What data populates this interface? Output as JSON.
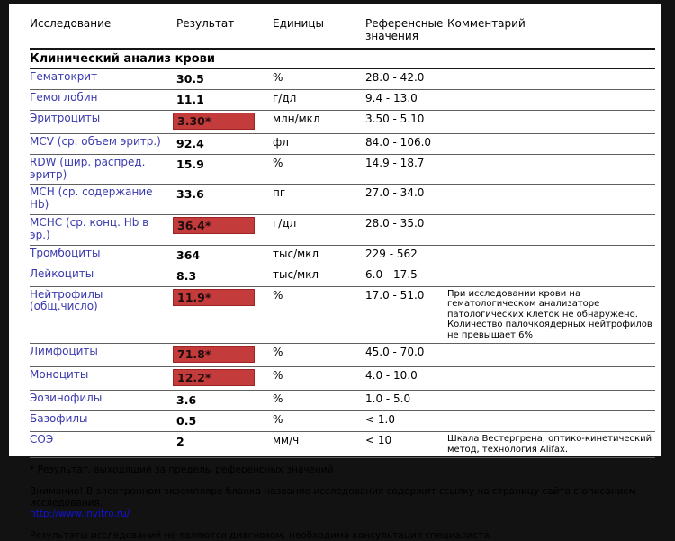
{
  "colors": {
    "flag_bg": "#c43b3b",
    "flag_border": "#9e2424",
    "test_name": "#3a3aad",
    "link": "#1212dd"
  },
  "table": {
    "headers": [
      "Исследование",
      "Результат",
      "Единицы",
      "Референсные значения",
      "Комментарий"
    ],
    "section_title": "Клинический анализ крови",
    "rows": [
      {
        "name": "Гематокрит",
        "result": "30.5",
        "flag": false,
        "units": "%",
        "reference": "28.0 - 42.0",
        "comment": ""
      },
      {
        "name": "Гемоглобин",
        "result": "11.1",
        "flag": false,
        "units": "г/дл",
        "reference": "9.4 - 13.0",
        "comment": ""
      },
      {
        "name": "Эритроциты",
        "result": "3.30*",
        "flag": true,
        "units": "млн/мкл",
        "reference": "3.50 - 5.10",
        "comment": ""
      },
      {
        "name": "MCV (ср. объем эритр.)",
        "result": "92.4",
        "flag": false,
        "units": "фл",
        "reference": "84.0 - 106.0",
        "comment": ""
      },
      {
        "name": "RDW (шир. распред. эритр)",
        "result": "15.9",
        "flag": false,
        "units": "%",
        "reference": "14.9 - 18.7",
        "comment": ""
      },
      {
        "name": "MCH (ср. содержание Hb)",
        "result": "33.6",
        "flag": false,
        "units": "пг",
        "reference": "27.0 - 34.0",
        "comment": ""
      },
      {
        "name": "MCHC (ср. конц. Hb в эр.)",
        "result": "36.4*",
        "flag": true,
        "units": "г/дл",
        "reference": "28.0 - 35.0",
        "comment": ""
      },
      {
        "name": "Тромбоциты",
        "result": "364",
        "flag": false,
        "units": "тыс/мкл",
        "reference": "229 - 562",
        "comment": ""
      },
      {
        "name": "Лейкоциты",
        "result": "8.3",
        "flag": false,
        "units": "тыс/мкл",
        "reference": "6.0 - 17.5",
        "comment": ""
      },
      {
        "name": "Нейтрофилы (общ.число)",
        "result": "11.9*",
        "flag": true,
        "units": "%",
        "reference": "17.0 - 51.0",
        "comment": "При исследовании крови на гематологическом анализаторе патологических клеток не обнаружено. Количество палочкоядерных нейтрофилов не превышает 6%"
      },
      {
        "name": "Лимфоциты",
        "result": "71.8*",
        "flag": true,
        "units": "%",
        "reference": "45.0 - 70.0",
        "comment": ""
      },
      {
        "name": "Моноциты",
        "result": "12.2*",
        "flag": true,
        "units": "%",
        "reference": "4.0 - 10.0",
        "comment": ""
      },
      {
        "name": "Эозинофилы",
        "result": "3.6",
        "flag": false,
        "units": "%",
        "reference": "1.0 - 5.0",
        "comment": ""
      },
      {
        "name": "Базофилы",
        "result": "0.5",
        "flag": false,
        "units": "%",
        "reference": "< 1.0",
        "comment": ""
      },
      {
        "name": "СОЭ",
        "result": "2",
        "flag": false,
        "units": "мм/ч",
        "reference": "< 10",
        "comment": "Шкала Вестергрена, оптико-кинетический метод, технология Alifax."
      }
    ]
  },
  "footer": {
    "footnote": "* Результат, выходящий за пределы референсных значений",
    "notice": "Внимание! В электронном экземпляре бланка название исследования содержит ссылку на страницу сайта с описанием исследования.",
    "link": "http://www.invitro.ru/",
    "disclaimer": "Результаты исследований не являются диагнозом, необходима консультация специалиста."
  }
}
